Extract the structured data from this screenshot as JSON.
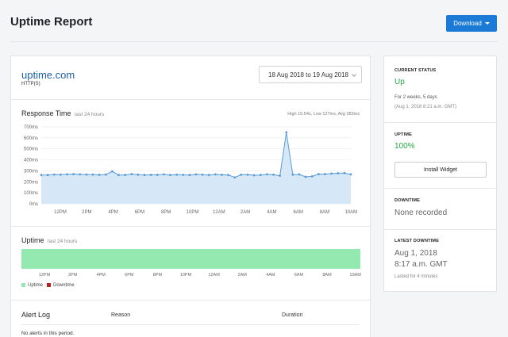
{
  "header": {
    "title": "Uptime Report",
    "download_label": "Download"
  },
  "monitor": {
    "name": "uptime.com",
    "protocol": "HTTP(S)",
    "date_range": "18 Aug 2018 to 19 Aug 2018"
  },
  "response_time": {
    "title": "Response Time",
    "subtitle": "last 24 hours",
    "stats": "High 15.54s, Low 127ms, Avg 283ms"
  },
  "uptime_section": {
    "title": "Uptime",
    "subtitle": "last 24 hours",
    "legend": [
      {
        "label": "Uptime",
        "color": "#93e9b0"
      },
      {
        "label": "Downtime",
        "color": "#b3261e"
      }
    ]
  },
  "chart_data": {
    "type": "line",
    "ylabel": "",
    "xlabel": "",
    "y_ticks": [
      "0ms",
      "100ms",
      "200ms",
      "300ms",
      "400ms",
      "500ms",
      "600ms",
      "700ms"
    ],
    "ylim": [
      0,
      700
    ],
    "x_ticks": [
      "12PM",
      "2PM",
      "4PM",
      "6PM",
      "8PM",
      "10PM",
      "12AM",
      "2AM",
      "4AM",
      "6AM",
      "8AM",
      "10AM"
    ],
    "series": [
      {
        "color": "#5b9bd5",
        "fill": "#d6e8f8",
        "values": [
          262,
          262,
          266,
          265,
          268,
          270,
          268,
          266,
          266,
          263,
          266,
          295,
          262,
          262,
          270,
          265,
          262,
          263,
          263,
          268,
          262,
          265,
          263,
          262,
          268,
          265,
          262,
          268,
          264,
          262,
          240,
          265,
          265,
          260,
          262,
          268,
          265,
          255,
          650,
          265,
          268,
          245,
          250,
          270,
          270,
          275,
          278,
          280,
          268
        ]
      }
    ],
    "grid": true
  },
  "uptime_x_ticks": [
    "12PM",
    "2PM",
    "4PM",
    "6PM",
    "8PM",
    "10PM",
    "12AM",
    "2AM",
    "4AM",
    "6AM",
    "8AM",
    "10AM"
  ],
  "alert_log": {
    "title": "Alert Log",
    "col_reason": "Reason",
    "col_duration": "Duration",
    "empty_text": "No alerts in this period."
  },
  "sidebar": {
    "current_status_label": "CURRENT STATUS",
    "current_status_value": "Up",
    "status_duration": "For 2 weeks, 5 days",
    "status_since": "(Aug 1, 2018 8:21 a.m. GMT)",
    "uptime_label": "UPTIME",
    "uptime_value": "100%",
    "install_widget_label": "Install Widget",
    "downtime_label": "DOWNTIME",
    "downtime_value": "None recorded",
    "latest_downtime_label": "LATEST DOWNTIME",
    "latest_downtime_date": "Aug 1, 2018",
    "latest_downtime_time": "8:17 a.m. GMT",
    "latest_downtime_duration": "Lasted for 4 minutes"
  }
}
